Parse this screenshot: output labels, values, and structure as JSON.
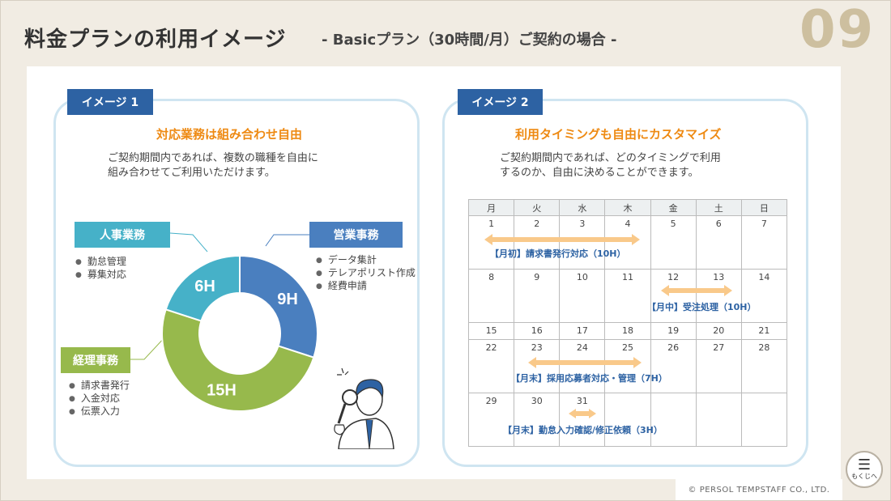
{
  "header": {
    "title": "料金プランの利用イメージ",
    "subtitle": "- Basicプラン（30時間/月）ご契約の場合 -",
    "page_number": "09"
  },
  "panel1": {
    "tag": "イメージ 1",
    "heading": "対応業務は組み合わせ自由",
    "description": "ご契約期間内であれば、複数の職種を自由に\n組み合わせてご利用いただけます。",
    "categories": [
      {
        "label": "人事業務",
        "color": "#46b1c8",
        "bullets": [
          "勤怠管理",
          "募集対応"
        ]
      },
      {
        "label": "営業事務",
        "color": "#4a7fbf",
        "bullets": [
          "データ集計",
          "テレアポリスト作成",
          "経費申請"
        ]
      },
      {
        "label": "経理事務",
        "color": "#97b94c",
        "bullets": [
          "請求書発行",
          "入金対応",
          "伝票入力"
        ]
      }
    ]
  },
  "chart_data": {
    "type": "pie",
    "categories": [
      "営業事務",
      "経理事務",
      "人事業務"
    ],
    "values": [
      9,
      15,
      6
    ],
    "labels": [
      "9H",
      "15H",
      "6H"
    ],
    "colors": [
      "#4a7fbf",
      "#97b94c",
      "#46b1c8"
    ]
  },
  "panel2": {
    "tag": "イメージ 2",
    "heading": "利用タイミングも自由にカスタマイズ",
    "description": "ご契約期間内であれば、どのタイミングで利用\nするのか、自由に決めることができます。",
    "weekdays": [
      "月",
      "火",
      "水",
      "木",
      "金",
      "土",
      "日"
    ],
    "weeks": [
      [
        "1",
        "2",
        "3",
        "4",
        "5",
        "6",
        "7"
      ],
      [
        "8",
        "9",
        "10",
        "11",
        "12",
        "13",
        "14"
      ],
      [
        "15",
        "16",
        "17",
        "18",
        "19",
        "20",
        "21"
      ],
      [
        "22",
        "23",
        "24",
        "25",
        "26",
        "27",
        "28"
      ],
      [
        "29",
        "30",
        "31",
        "",
        "",
        "",
        ""
      ]
    ],
    "events": [
      {
        "label": "【月初】請求書発行対応（10H）"
      },
      {
        "label": "【月中】受注処理（10H）"
      },
      {
        "label": "【月末】採用応募者対応・管理（7H）"
      },
      {
        "label": "【月末】勤怠入力確認/修正依頼（3H）"
      }
    ],
    "arrow_color": "#f9c98a"
  },
  "footer": {
    "copyright": "© PERSOL TEMPSTAFF CO., LTD.",
    "menu_label": "もくじへ"
  }
}
